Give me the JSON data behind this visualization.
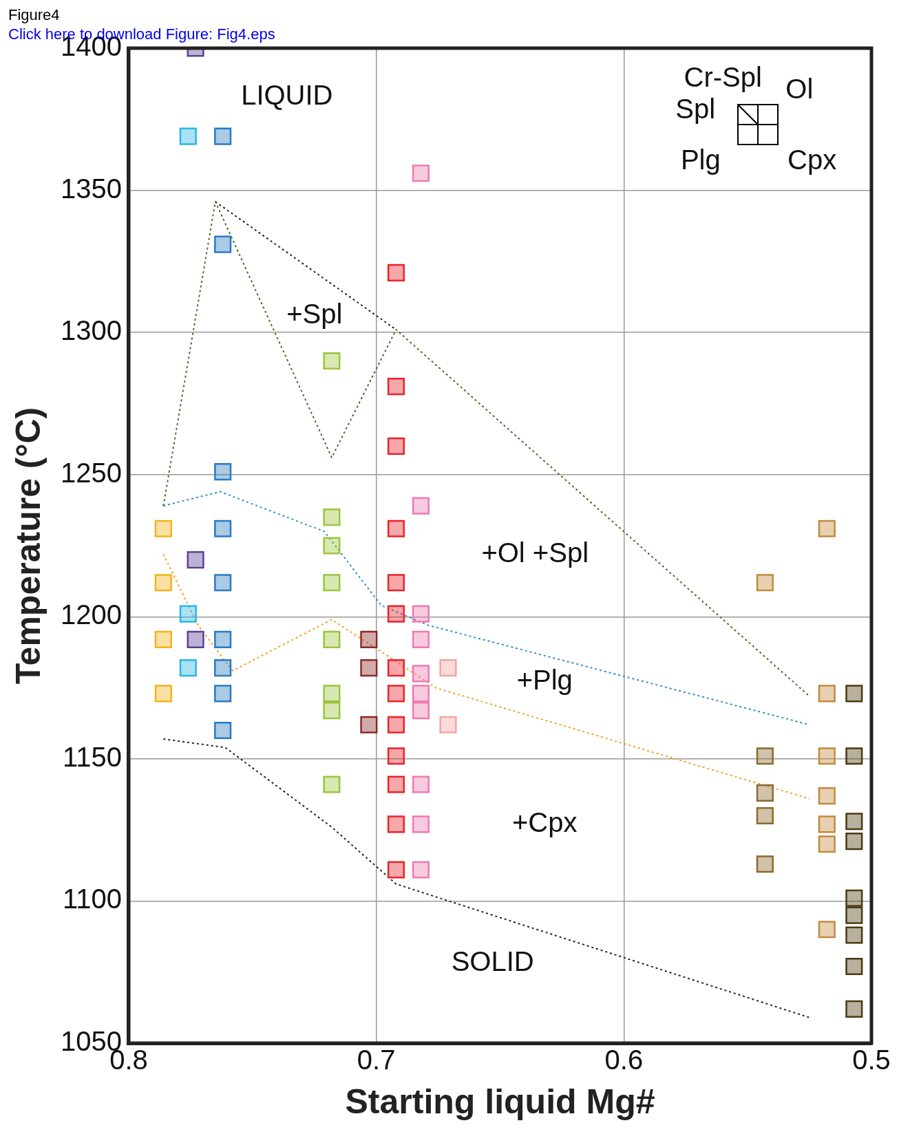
{
  "chart_data": {
    "type": "scatter",
    "xlabel": "Starting liquid Mg#",
    "ylabel": "Temperature (°C)",
    "xlim": [
      0.8,
      0.5
    ],
    "xticks": [
      0.8,
      0.7,
      0.6,
      0.5
    ],
    "ylim": [
      1050,
      1400
    ],
    "yticks": [
      1050,
      1100,
      1150,
      1200,
      1250,
      1300,
      1350,
      1400
    ],
    "grid": true,
    "marker": "square",
    "series": [
      {
        "type": "scatter",
        "color": "#5b3f97",
        "x": [
          0.773,
          0.773,
          0.773
        ],
        "values": [
          1400,
          1220,
          1192
        ]
      },
      {
        "type": "scatter",
        "color": "#29b6e6",
        "x": [
          0.776,
          0.776,
          0.776
        ],
        "values": [
          1369,
          1201,
          1182
        ]
      },
      {
        "type": "scatter",
        "color": "#2a7bbf",
        "x": [
          0.762,
          0.762,
          0.762,
          0.762,
          0.762,
          0.762,
          0.762,
          0.762,
          0.762
        ],
        "values": [
          1369,
          1331,
          1251,
          1231,
          1212,
          1192,
          1182,
          1173,
          1160
        ]
      },
      {
        "type": "scatter",
        "color": "#f5b21a",
        "x": [
          0.786,
          0.786,
          0.786,
          0.786
        ],
        "values": [
          1231,
          1212,
          1192,
          1173
        ]
      },
      {
        "type": "scatter",
        "color": "#9bc53d",
        "x": [
          0.718,
          0.718,
          0.718,
          0.718,
          0.718,
          0.718,
          0.718,
          0.718
        ],
        "values": [
          1290,
          1235,
          1225,
          1212,
          1192,
          1173,
          1167,
          1141
        ]
      },
      {
        "type": "scatter",
        "color": "#e8242a",
        "x": [
          0.692,
          0.692,
          0.692,
          0.692,
          0.692,
          0.692,
          0.692,
          0.692,
          0.692,
          0.692,
          0.692,
          0.692,
          0.692
        ],
        "values": [
          1321,
          1281,
          1260,
          1231,
          1212,
          1201,
          1182,
          1173,
          1162,
          1151,
          1141,
          1127,
          1111
        ]
      },
      {
        "type": "scatter",
        "color": "#8b2a2a",
        "x": [
          0.703,
          0.703,
          0.703
        ],
        "values": [
          1192,
          1182,
          1162
        ]
      },
      {
        "type": "scatter",
        "color": "#ee7bb0",
        "x": [
          0.682,
          0.682,
          0.682,
          0.682,
          0.682,
          0.682,
          0.682,
          0.682,
          0.682,
          0.682
        ],
        "values": [
          1356,
          1239,
          1201,
          1192,
          1180,
          1173,
          1167,
          1141,
          1127,
          1111
        ]
      },
      {
        "type": "scatter",
        "color": "#f4a3a3",
        "x": [
          0.671,
          0.671
        ],
        "values": [
          1182,
          1162
        ]
      },
      {
        "type": "scatter",
        "color": "#c18a3c",
        "x": [
          0.518,
          0.543,
          0.518,
          0.518,
          0.518,
          0.518,
          0.518,
          0.518
        ],
        "values": [
          1231,
          1212,
          1173,
          1151,
          1137,
          1127,
          1120,
          1090
        ]
      },
      {
        "type": "scatter",
        "color": "#8a6a2a",
        "x": [
          0.543,
          0.543,
          0.543,
          0.543
        ],
        "values": [
          1151,
          1138,
          1130,
          1113
        ]
      },
      {
        "type": "scatter",
        "color": "#4a3a10",
        "x": [
          0.507,
          0.507,
          0.507,
          0.507,
          0.507,
          0.507,
          0.507,
          0.507,
          0.507
        ],
        "values": [
          1173,
          1151,
          1128,
          1121,
          1101,
          1095,
          1088,
          1077,
          1062
        ]
      },
      {
        "type": "line",
        "color": "#4a6a2a",
        "line_style": "dotted",
        "marker": "none",
        "x": [
          0.786,
          0.765,
          0.718,
          0.692,
          0.525
        ],
        "values": [
          1239,
          1346,
          1256,
          1301,
          1172
        ]
      },
      {
        "type": "line",
        "color": "#222222",
        "line_style": "dotted",
        "marker": "none",
        "x": [
          0.765,
          0.692
        ],
        "values": [
          1346,
          1301
        ]
      },
      {
        "type": "line",
        "color": "#2a90d0",
        "line_style": "dotted",
        "marker": "none",
        "x": [
          0.786,
          0.763,
          0.721,
          0.698,
          0.679,
          0.525
        ],
        "values": [
          1239,
          1244,
          1230,
          1204,
          1197,
          1162
        ]
      },
      {
        "type": "line",
        "color": "#f5a020",
        "line_style": "dotted",
        "marker": "none",
        "x": [
          0.786,
          0.772,
          0.758,
          0.718,
          0.695,
          0.676,
          0.525
        ],
        "values": [
          1222,
          1197,
          1181,
          1199,
          1186,
          1175,
          1136
        ]
      },
      {
        "type": "line",
        "color": "#222222",
        "line_style": "dotted",
        "marker": "none",
        "x": [
          0.786,
          0.761,
          0.718,
          0.692,
          0.525
        ],
        "values": [
          1157,
          1154,
          1126,
          1106,
          1059
        ]
      }
    ],
    "annotations": [
      "Figure4",
      "Click here to download Figure: Fig4.eps",
      "LIQUID",
      "+Spl",
      "+Ol +Spl",
      "+Plg",
      "+Cpx",
      "SOLID",
      "Cr-Spl",
      "Ol",
      "Spl",
      "Plg",
      "Cpx"
    ]
  }
}
